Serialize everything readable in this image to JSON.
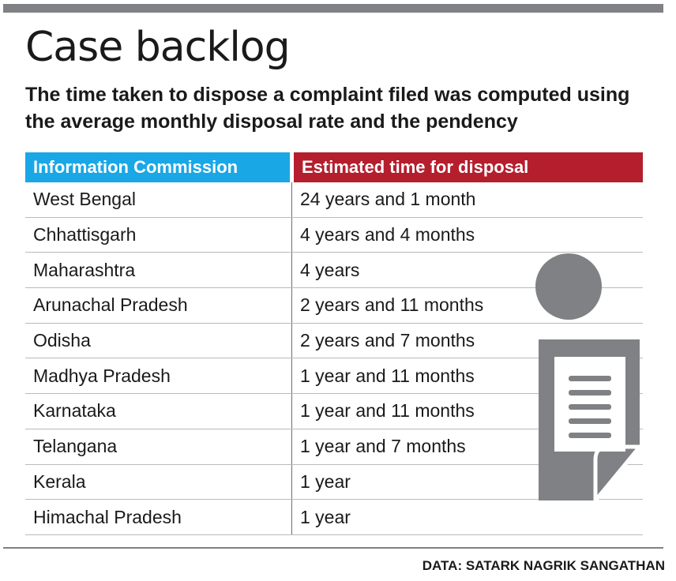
{
  "title": "Case backlog",
  "subtitle": "The time taken to dispose a complaint filed was computed using the average monthly disposal rate and the pendency",
  "source": "DATA: SATARK NAGRIK SANGATHAN",
  "colors": {
    "header_col1": "#1aa7e6",
    "header_col2": "#b51e2d",
    "icon_gray": "#808184",
    "rule_gray": "#808184"
  },
  "icon": "person-document-icon",
  "chart_data": {
    "type": "table",
    "columns": [
      "Information Commission",
      "Estimated time for disposal"
    ],
    "rows": [
      [
        "West Bengal",
        "24 years and 1 month"
      ],
      [
        "Chhattisgarh",
        "4 years and 4 months"
      ],
      [
        "Maharashtra",
        "4 years"
      ],
      [
        "Arunachal Pradesh",
        "2 years and 11 months"
      ],
      [
        "Odisha",
        "2 years and 7 months"
      ],
      [
        "Madhya Pradesh",
        "1 year and 11 months"
      ],
      [
        "Karnataka",
        "1 year and 11 months"
      ],
      [
        "Telangana",
        "1 year and 7 months"
      ],
      [
        "Kerala",
        "1 year"
      ],
      [
        "Himachal Pradesh",
        "1 year"
      ]
    ]
  }
}
